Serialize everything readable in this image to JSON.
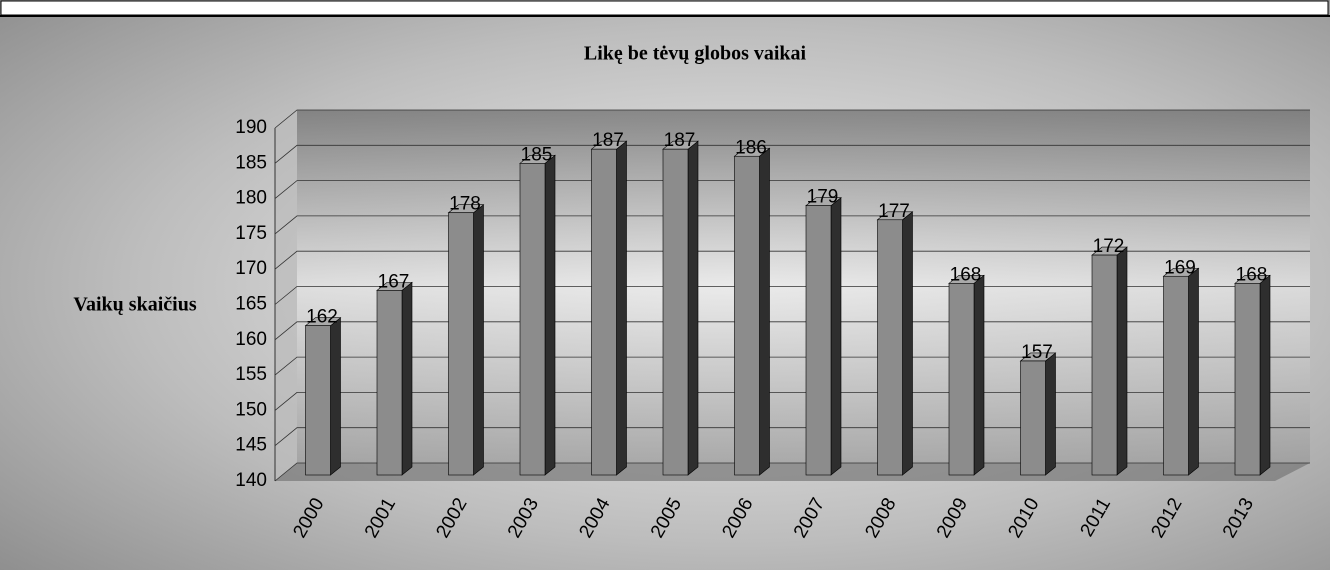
{
  "chart_data": {
    "type": "bar",
    "title": "Likę be tėvų globos vaikai",
    "y_label": "Vaikų skaičius",
    "categories": [
      "2000",
      "2001",
      "2002",
      "2003",
      "2004",
      "2005",
      "2006",
      "2007",
      "2008",
      "2009",
      "2010",
      "2011",
      "2012",
      "2013"
    ],
    "values": [
      162,
      167,
      178,
      185,
      187,
      187,
      186,
      179,
      177,
      168,
      157,
      172,
      169,
      168
    ],
    "color": "#8c8c8c",
    "ylim": [
      140,
      190
    ],
    "yticks": [
      140,
      145,
      150,
      155,
      160,
      165,
      170,
      175,
      180,
      185,
      190
    ],
    "grid": true
  }
}
